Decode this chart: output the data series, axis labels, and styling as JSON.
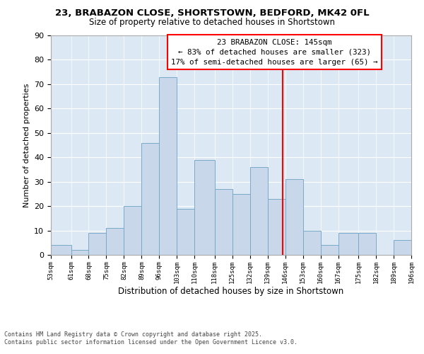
{
  "title1": "23, BRABAZON CLOSE, SHORTSTOWN, BEDFORD, MK42 0FL",
  "title2": "Size of property relative to detached houses in Shortstown",
  "xlabel": "Distribution of detached houses by size in Shortstown",
  "ylabel": "Number of detached properties",
  "bar_color": "#c8d8ea",
  "bar_edge_color": "#7aaac8",
  "background_color": "#dce8f4",
  "vline_x": 145,
  "vline_color": "red",
  "bin_edges": [
    53,
    61,
    68,
    75,
    82,
    89,
    96,
    103,
    110,
    118,
    125,
    132,
    139,
    146,
    153,
    160,
    167,
    175,
    182,
    189,
    196
  ],
  "counts": [
    4,
    2,
    9,
    11,
    20,
    46,
    73,
    19,
    39,
    27,
    25,
    36,
    23,
    31,
    10,
    4,
    9,
    9,
    0,
    6
  ],
  "tick_labels": [
    "53sqm",
    "61sqm",
    "68sqm",
    "75sqm",
    "82sqm",
    "89sqm",
    "96sqm",
    "103sqm",
    "110sqm",
    "118sqm",
    "125sqm",
    "132sqm",
    "139sqm",
    "146sqm",
    "153sqm",
    "160sqm",
    "167sqm",
    "175sqm",
    "182sqm",
    "189sqm",
    "196sqm"
  ],
  "legend_title": "23 BRABAZON CLOSE: 145sqm",
  "legend_line1": "← 83% of detached houses are smaller (323)",
  "legend_line2": "17% of semi-detached houses are larger (65) →",
  "footnote1": "Contains HM Land Registry data © Crown copyright and database right 2025.",
  "footnote2": "Contains public sector information licensed under the Open Government Licence v3.0.",
  "ylim": [
    0,
    90
  ],
  "yticks": [
    0,
    10,
    20,
    30,
    40,
    50,
    60,
    70,
    80,
    90
  ]
}
